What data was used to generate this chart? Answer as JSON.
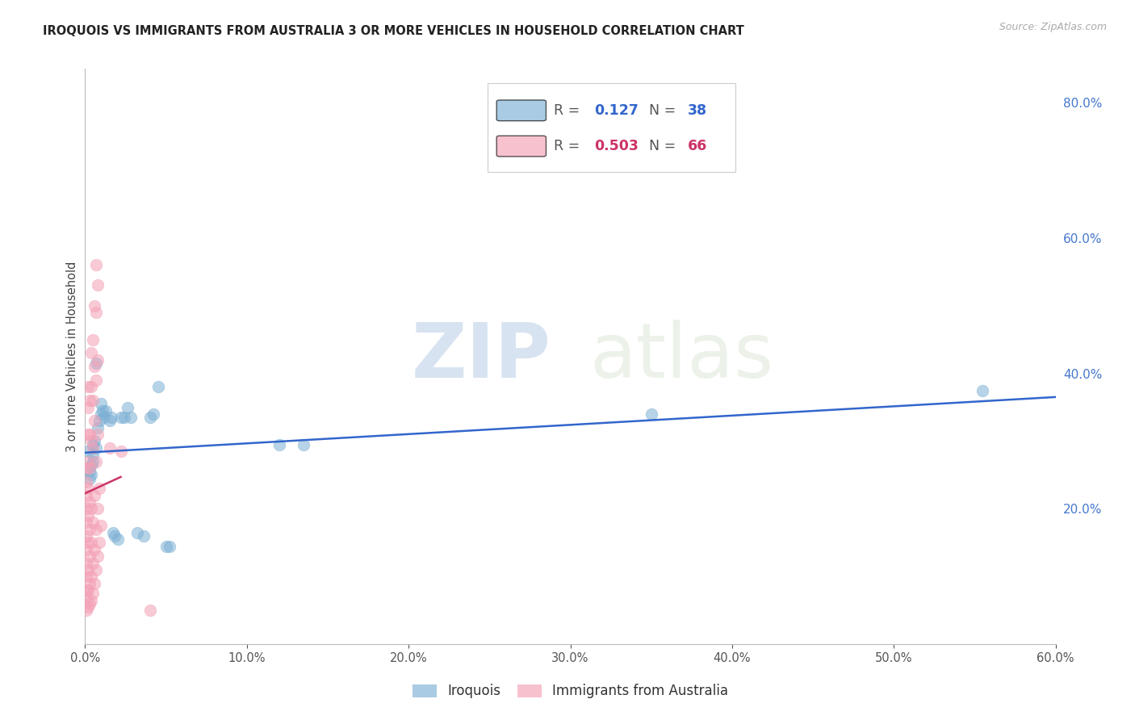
{
  "title": "IROQUOIS VS IMMIGRANTS FROM AUSTRALIA 3 OR MORE VEHICLES IN HOUSEHOLD CORRELATION CHART",
  "source": "Source: ZipAtlas.com",
  "ylabel": "3 or more Vehicles in Household",
  "ylabel_right_vals": [
    0.2,
    0.4,
    0.6,
    0.8
  ],
  "xmin": 0.0,
  "xmax": 0.6,
  "ymin": 0.0,
  "ymax": 0.85,
  "watermark_zip": "ZIP",
  "watermark_atlas": "atlas",
  "iroquois_color": "#7bafd4",
  "australia_color": "#f4a0b5",
  "iroquois_R": 0.127,
  "iroquois_N": 38,
  "australia_R": 0.503,
  "australia_N": 66,
  "iroquois_points": [
    [
      0.002,
      0.285
    ],
    [
      0.003,
      0.255
    ],
    [
      0.003,
      0.245
    ],
    [
      0.004,
      0.265
    ],
    [
      0.004,
      0.25
    ],
    [
      0.005,
      0.27
    ],
    [
      0.005,
      0.28
    ],
    [
      0.005,
      0.295
    ],
    [
      0.006,
      0.3
    ],
    [
      0.007,
      0.29
    ],
    [
      0.007,
      0.415
    ],
    [
      0.008,
      0.32
    ],
    [
      0.009,
      0.33
    ],
    [
      0.01,
      0.355
    ],
    [
      0.01,
      0.34
    ],
    [
      0.011,
      0.345
    ],
    [
      0.012,
      0.335
    ],
    [
      0.013,
      0.345
    ],
    [
      0.015,
      0.33
    ],
    [
      0.016,
      0.335
    ],
    [
      0.017,
      0.165
    ],
    [
      0.018,
      0.16
    ],
    [
      0.02,
      0.155
    ],
    [
      0.022,
      0.335
    ],
    [
      0.024,
      0.335
    ],
    [
      0.026,
      0.35
    ],
    [
      0.028,
      0.335
    ],
    [
      0.032,
      0.165
    ],
    [
      0.036,
      0.16
    ],
    [
      0.04,
      0.335
    ],
    [
      0.042,
      0.34
    ],
    [
      0.045,
      0.38
    ],
    [
      0.05,
      0.145
    ],
    [
      0.052,
      0.145
    ],
    [
      0.12,
      0.295
    ],
    [
      0.135,
      0.295
    ],
    [
      0.35,
      0.34
    ],
    [
      0.555,
      0.375
    ]
  ],
  "australia_points": [
    [
      0.001,
      0.05
    ],
    [
      0.001,
      0.07
    ],
    [
      0.001,
      0.08
    ],
    [
      0.001,
      0.1
    ],
    [
      0.001,
      0.12
    ],
    [
      0.001,
      0.14
    ],
    [
      0.001,
      0.16
    ],
    [
      0.001,
      0.18
    ],
    [
      0.001,
      0.2
    ],
    [
      0.001,
      0.22
    ],
    [
      0.001,
      0.24
    ],
    [
      0.001,
      0.26
    ],
    [
      0.002,
      0.055
    ],
    [
      0.002,
      0.08
    ],
    [
      0.002,
      0.11
    ],
    [
      0.002,
      0.15
    ],
    [
      0.002,
      0.19
    ],
    [
      0.002,
      0.23
    ],
    [
      0.002,
      0.27
    ],
    [
      0.002,
      0.31
    ],
    [
      0.002,
      0.35
    ],
    [
      0.002,
      0.38
    ],
    [
      0.003,
      0.06
    ],
    [
      0.003,
      0.09
    ],
    [
      0.003,
      0.13
    ],
    [
      0.003,
      0.17
    ],
    [
      0.003,
      0.21
    ],
    [
      0.003,
      0.26
    ],
    [
      0.003,
      0.31
    ],
    [
      0.003,
      0.36
    ],
    [
      0.004,
      0.065
    ],
    [
      0.004,
      0.1
    ],
    [
      0.004,
      0.15
    ],
    [
      0.004,
      0.2
    ],
    [
      0.004,
      0.3
    ],
    [
      0.004,
      0.38
    ],
    [
      0.004,
      0.43
    ],
    [
      0.005,
      0.075
    ],
    [
      0.005,
      0.12
    ],
    [
      0.005,
      0.18
    ],
    [
      0.005,
      0.29
    ],
    [
      0.005,
      0.36
    ],
    [
      0.005,
      0.45
    ],
    [
      0.006,
      0.09
    ],
    [
      0.006,
      0.14
    ],
    [
      0.006,
      0.22
    ],
    [
      0.006,
      0.33
    ],
    [
      0.006,
      0.41
    ],
    [
      0.006,
      0.5
    ],
    [
      0.007,
      0.11
    ],
    [
      0.007,
      0.17
    ],
    [
      0.007,
      0.27
    ],
    [
      0.007,
      0.39
    ],
    [
      0.007,
      0.49
    ],
    [
      0.007,
      0.56
    ],
    [
      0.008,
      0.13
    ],
    [
      0.008,
      0.2
    ],
    [
      0.008,
      0.31
    ],
    [
      0.008,
      0.42
    ],
    [
      0.008,
      0.53
    ],
    [
      0.009,
      0.15
    ],
    [
      0.009,
      0.23
    ],
    [
      0.01,
      0.175
    ],
    [
      0.015,
      0.29
    ],
    [
      0.022,
      0.285
    ],
    [
      0.04,
      0.05
    ]
  ],
  "iroquois_line_color": "#3366cc",
  "australia_line_color": "#cc3366",
  "background_color": "#ffffff",
  "grid_color": "#e0e0e0"
}
